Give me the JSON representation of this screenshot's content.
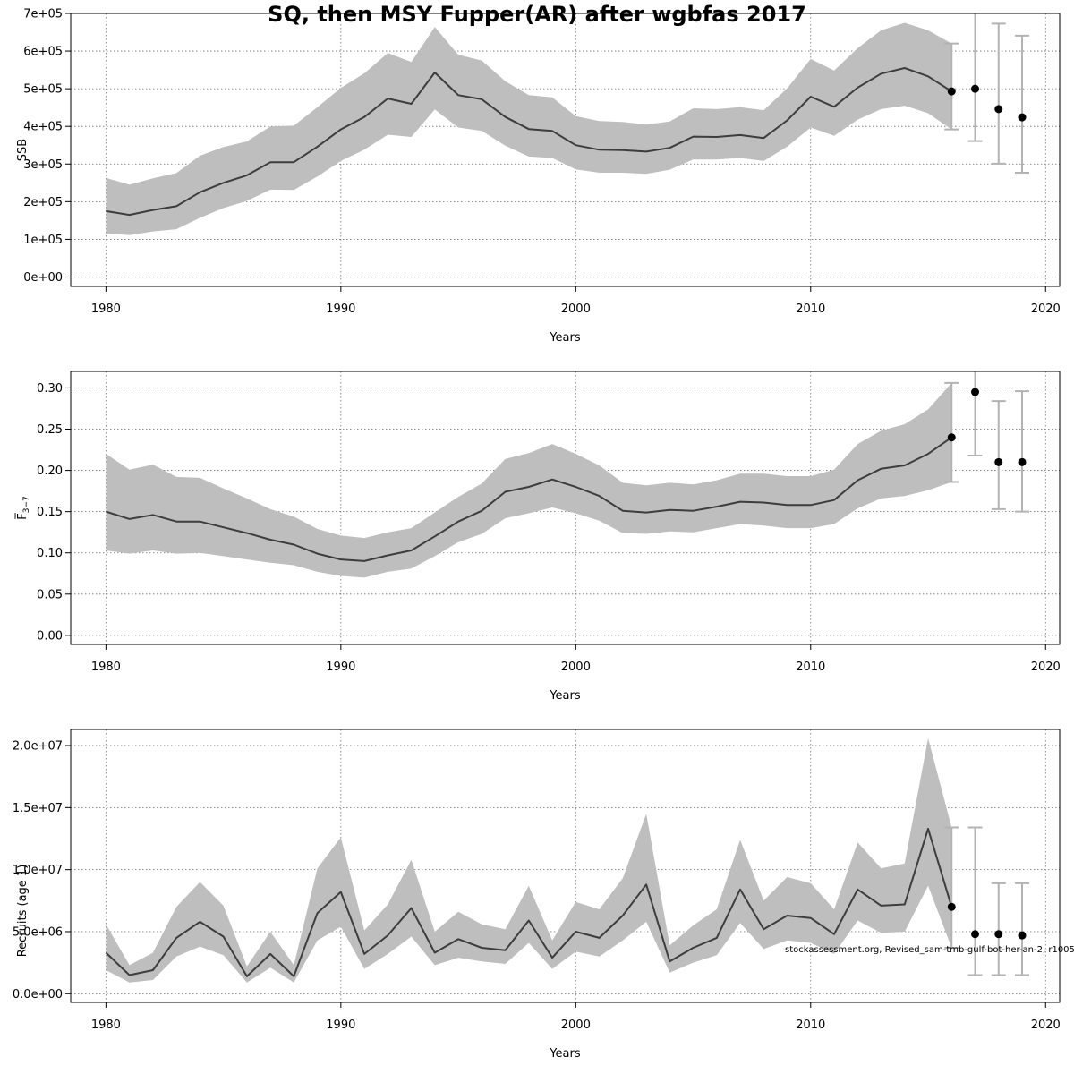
{
  "title": "SQ, then MSY Fupper(AR) after wgbfas 2017",
  "footnote": "stockassessment.org, Revised_sam-tmb-gulf-bot-her-an-2, r10059",
  "colors": {
    "band": "#bebebe",
    "line": "#3d3d3d",
    "errorbar": "#b3b3b3",
    "point": "#000000",
    "grid": "#6e6e6e"
  },
  "chart_data": [
    {
      "type": "line",
      "name": "ssb",
      "title": "",
      "xlabel": "Years",
      "ylabel": "SSB",
      "xlim": [
        1978.5,
        2020.6
      ],
      "ylim": [
        -25000,
        700000
      ],
      "x_ticks": [
        1980,
        1990,
        2000,
        2010,
        2020
      ],
      "x_tick_labels": [
        "1980",
        "1990",
        "2000",
        "2010",
        "2020"
      ],
      "y_ticks": [
        0,
        100000,
        200000,
        300000,
        400000,
        500000,
        600000,
        700000
      ],
      "y_tick_labels": [
        "0e+00",
        "1e+05",
        "2e+05",
        "3e+05",
        "4e+05",
        "5e+05",
        "6e+05",
        "7e+05"
      ],
      "grid": true,
      "years": [
        1980,
        1981,
        1982,
        1983,
        1984,
        1985,
        1986,
        1987,
        1988,
        1989,
        1990,
        1991,
        1992,
        1993,
        1994,
        1995,
        1996,
        1997,
        1998,
        1999,
        2000,
        2001,
        2002,
        2003,
        2004,
        2005,
        2006,
        2007,
        2008,
        2009,
        2010,
        2011,
        2012,
        2013,
        2014,
        2015,
        2016
      ],
      "estimate": [
        175000,
        165000,
        178000,
        188000,
        225000,
        250000,
        270000,
        305000,
        305000,
        346000,
        392000,
        425000,
        474000,
        460000,
        543000,
        483000,
        472000,
        425000,
        393000,
        388000,
        350000,
        338000,
        337000,
        333000,
        343000,
        373000,
        372000,
        377000,
        369000,
        416000,
        479000,
        452000,
        503000,
        540000,
        555000,
        533000,
        493000
      ],
      "lower": [
        116000,
        111000,
        121000,
        127000,
        157000,
        183000,
        202000,
        232000,
        231000,
        267000,
        308000,
        338000,
        378000,
        372000,
        445000,
        397000,
        388000,
        349000,
        320000,
        316000,
        286000,
        277000,
        277000,
        274000,
        285000,
        312000,
        312000,
        316000,
        308000,
        346000,
        397000,
        375000,
        418000,
        446000,
        455000,
        435000,
        392000
      ],
      "upper": [
        263000,
        245000,
        262000,
        276000,
        322000,
        345000,
        360000,
        400000,
        402000,
        451000,
        502000,
        541000,
        595000,
        571000,
        664000,
        590000,
        575000,
        520000,
        483000,
        477000,
        427000,
        414000,
        412000,
        405000,
        413000,
        448000,
        446000,
        451000,
        443000,
        501000,
        579000,
        548000,
        608000,
        655000,
        675000,
        655000,
        620000
      ],
      "forecast": {
        "years": [
          2016,
          2017,
          2018,
          2019
        ],
        "median": [
          493000,
          500000,
          446000,
          424000
        ],
        "low": [
          392000,
          361000,
          301000,
          277000
        ],
        "high": [
          620000,
          705000,
          673000,
          641000
        ]
      }
    },
    {
      "type": "line",
      "name": "fbar",
      "title": "",
      "xlabel": "Years",
      "ylabel": "F̅ 3−7",
      "ylabel_main": "F̅",
      "ylabel_sub": "3−7",
      "xlim": [
        1978.5,
        2020.6
      ],
      "ylim": [
        -0.011,
        0.32
      ],
      "x_ticks": [
        1980,
        1990,
        2000,
        2010,
        2020
      ],
      "x_tick_labels": [
        "1980",
        "1990",
        "2000",
        "2010",
        "2020"
      ],
      "y_ticks": [
        0.0,
        0.05,
        0.1,
        0.15,
        0.2,
        0.25,
        0.3
      ],
      "y_tick_labels": [
        "0.00",
        "0.05",
        "0.10",
        "0.15",
        "0.20",
        "0.25",
        "0.30"
      ],
      "grid": true,
      "years": [
        1980,
        1981,
        1982,
        1983,
        1984,
        1985,
        1986,
        1987,
        1988,
        1989,
        1990,
        1991,
        1992,
        1993,
        1994,
        1995,
        1996,
        1997,
        1998,
        1999,
        2000,
        2001,
        2002,
        2003,
        2004,
        2005,
        2006,
        2007,
        2008,
        2009,
        2010,
        2011,
        2012,
        2013,
        2014,
        2015,
        2016
      ],
      "estimate": [
        0.15,
        0.141,
        0.146,
        0.138,
        0.138,
        0.131,
        0.124,
        0.116,
        0.11,
        0.099,
        0.092,
        0.09,
        0.097,
        0.103,
        0.12,
        0.138,
        0.151,
        0.174,
        0.18,
        0.189,
        0.18,
        0.169,
        0.151,
        0.149,
        0.152,
        0.151,
        0.156,
        0.162,
        0.161,
        0.158,
        0.158,
        0.164,
        0.188,
        0.202,
        0.206,
        0.22,
        0.24
      ],
      "lower": [
        0.103,
        0.099,
        0.103,
        0.099,
        0.1,
        0.096,
        0.092,
        0.088,
        0.085,
        0.077,
        0.072,
        0.07,
        0.077,
        0.081,
        0.096,
        0.113,
        0.123,
        0.142,
        0.148,
        0.155,
        0.148,
        0.139,
        0.124,
        0.123,
        0.126,
        0.125,
        0.13,
        0.135,
        0.133,
        0.13,
        0.13,
        0.135,
        0.154,
        0.166,
        0.169,
        0.176,
        0.186
      ],
      "upper": [
        0.22,
        0.201,
        0.207,
        0.192,
        0.191,
        0.178,
        0.166,
        0.153,
        0.144,
        0.129,
        0.121,
        0.118,
        0.125,
        0.13,
        0.149,
        0.168,
        0.184,
        0.214,
        0.221,
        0.232,
        0.22,
        0.206,
        0.185,
        0.182,
        0.185,
        0.183,
        0.188,
        0.196,
        0.196,
        0.193,
        0.193,
        0.201,
        0.232,
        0.248,
        0.256,
        0.274,
        0.306
      ],
      "forecast": {
        "years": [
          2016,
          2017,
          2018,
          2019
        ],
        "median": [
          0.24,
          0.295,
          0.21,
          0.21
        ],
        "low": [
          0.186,
          0.218,
          0.153,
          0.15
        ],
        "high": [
          0.306,
          0.322,
          0.284,
          0.296
        ]
      }
    },
    {
      "type": "line",
      "name": "recruits",
      "title": "",
      "xlabel": "Years",
      "ylabel": "Recruits (age 1)",
      "xlim": [
        1978.5,
        2020.6
      ],
      "ylim": [
        -700000,
        21300000
      ],
      "x_ticks": [
        1980,
        1990,
        2000,
        2010,
        2020
      ],
      "x_tick_labels": [
        "1980",
        "1990",
        "2000",
        "2010",
        "2020"
      ],
      "y_ticks": [
        0,
        5000000,
        10000000,
        15000000,
        20000000
      ],
      "y_tick_labels": [
        "0.0e+00",
        "5.0e+06",
        "1.0e+07",
        "1.5e+07",
        "2.0e+07"
      ],
      "grid": true,
      "years": [
        1980,
        1981,
        1982,
        1983,
        1984,
        1985,
        1986,
        1987,
        1988,
        1989,
        1990,
        1991,
        1992,
        1993,
        1994,
        1995,
        1996,
        1997,
        1998,
        1999,
        2000,
        2001,
        2002,
        2003,
        2004,
        2005,
        2006,
        2007,
        2008,
        2009,
        2010,
        2011,
        2012,
        2013,
        2014,
        2015,
        2016
      ],
      "estimate": [
        3300000,
        1500000,
        1900000,
        4500000,
        5800000,
        4600000,
        1400000,
        3200000,
        1400000,
        6500000,
        8200000,
        3200000,
        4700000,
        6900000,
        3300000,
        4400000,
        3700000,
        3500000,
        5900000,
        2900000,
        5000000,
        4500000,
        6300000,
        8800000,
        2600000,
        3700000,
        4500000,
        8400000,
        5200000,
        6300000,
        6100000,
        4800000,
        8400000,
        7100000,
        7200000,
        13300000,
        7000000
      ],
      "lower": [
        1900000,
        900000,
        1100000,
        3000000,
        3800000,
        3100000,
        900000,
        2100000,
        900000,
        4300000,
        5400000,
        2000000,
        3200000,
        4600000,
        2300000,
        2900000,
        2600000,
        2400000,
        4100000,
        2000000,
        3400000,
        3000000,
        4300000,
        5800000,
        1700000,
        2500000,
        3100000,
        5700000,
        3600000,
        4300000,
        4100000,
        3200000,
        5900000,
        4900000,
        5000000,
        8700000,
        3700000
      ],
      "upper": [
        5600000,
        2300000,
        3300000,
        7000000,
        9000000,
        7100000,
        2200000,
        5000000,
        2300000,
        10100000,
        12600000,
        5100000,
        7200000,
        10800000,
        5000000,
        6600000,
        5600000,
        5200000,
        8700000,
        4300000,
        7400000,
        6800000,
        9300000,
        14500000,
        3900000,
        5500000,
        6800000,
        12400000,
        7500000,
        9400000,
        8900000,
        6800000,
        12200000,
        10100000,
        10500000,
        20600000,
        13400000
      ],
      "forecast": {
        "years": [
          2016,
          2017,
          2018,
          2019
        ],
        "median": [
          7000000,
          4800000,
          4800000,
          4700000
        ],
        "low": [
          3700000,
          1500000,
          1500000,
          1500000
        ],
        "high": [
          13400000,
          13400000,
          8900000,
          8900000
        ]
      }
    }
  ]
}
